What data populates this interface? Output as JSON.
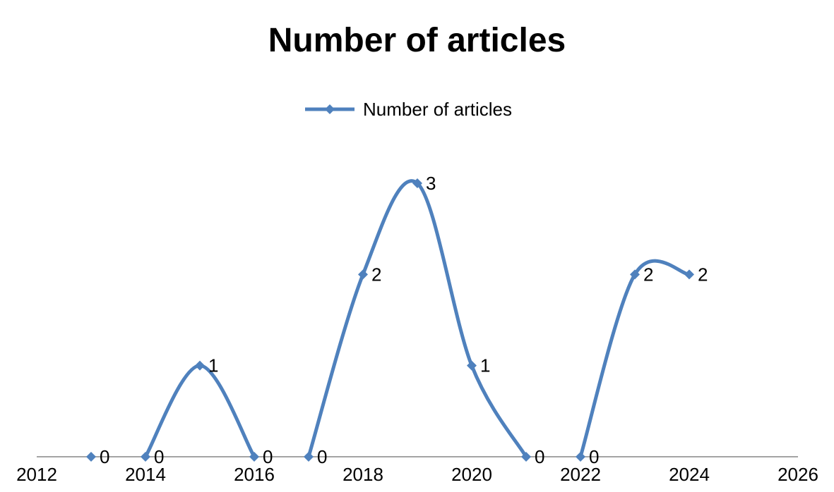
{
  "chart_data": {
    "type": "line",
    "title": "Number of articles",
    "xlabel": "",
    "ylabel": "",
    "xlim": [
      2012,
      2026
    ],
    "ylim": [
      0,
      3
    ],
    "x_ticks": [
      "2012",
      "2014",
      "2016",
      "2018",
      "2020",
      "2022",
      "2024",
      "2026"
    ],
    "smooth": true,
    "grid": false,
    "legend_position": "top-center",
    "series": [
      {
        "name": "Number of articles",
        "color": "#4f81bd",
        "marker": "diamond",
        "segments": [
          [
            {
              "x": 2013,
              "y": 0
            }
          ],
          [
            {
              "x": 2014,
              "y": 0
            },
            {
              "x": 2015,
              "y": 1
            },
            {
              "x": 2016,
              "y": 0
            }
          ],
          [
            {
              "x": 2017,
              "y": 0
            },
            {
              "x": 2018,
              "y": 2
            },
            {
              "x": 2019,
              "y": 3
            },
            {
              "x": 2020,
              "y": 1
            },
            {
              "x": 2021,
              "y": 0
            }
          ],
          [
            {
              "x": 2022,
              "y": 0
            },
            {
              "x": 2023,
              "y": 2
            },
            {
              "x": 2024,
              "y": 2
            }
          ]
        ]
      }
    ]
  }
}
